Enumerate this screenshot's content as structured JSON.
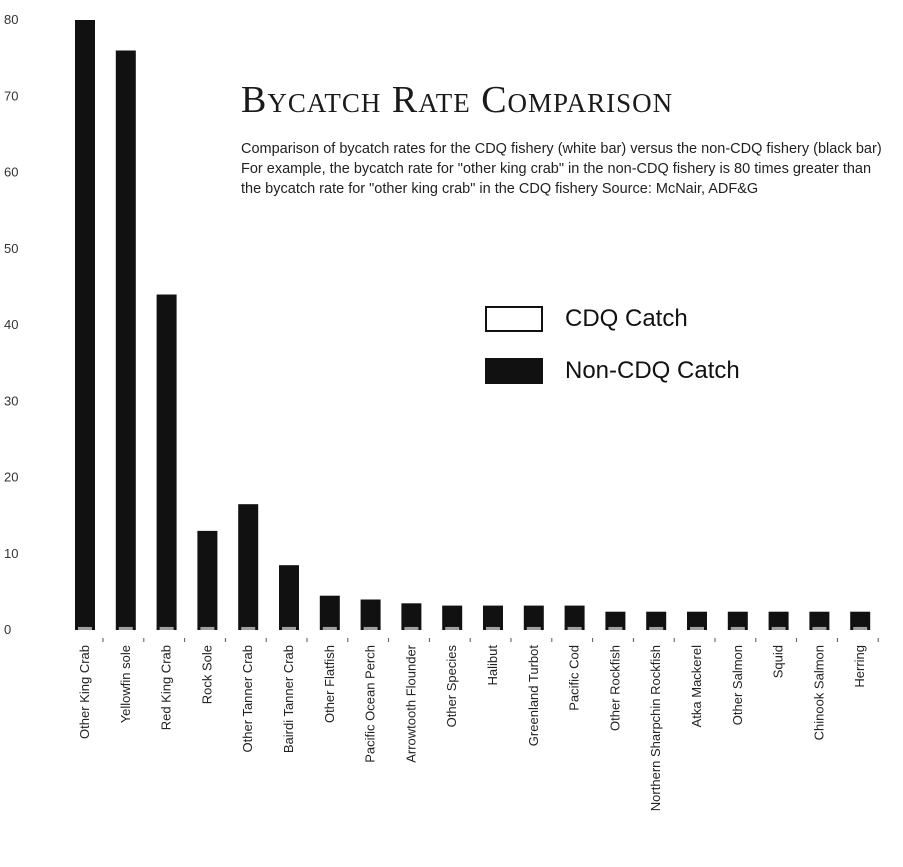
{
  "title": "Bycatch Rate Comparison",
  "subtitle": "Comparison of bycatch rates for the  CDQ fishery (white bar) versus the non-CDQ fishery (black bar)  For example, the bycatch rate for \"other king crab\" in the non-CDQ fishery is 80 times greater than the bycatch rate for \"other king crab\" in the CDQ fishery  Source: McNair, ADF&G",
  "legend": {
    "cdq": "CDQ Catch",
    "non_cdq": "Non-CDQ Catch"
  },
  "colors": {
    "cdq": "#ffffff",
    "non_cdq": "#111111"
  },
  "chart_data": {
    "type": "bar",
    "title": "Bycatch Rate Comparison",
    "xlabel": "",
    "ylabel": "",
    "ylim": [
      0,
      80
    ],
    "yticks": [
      0,
      10,
      20,
      30,
      40,
      50,
      60,
      70,
      80
    ],
    "grid": false,
    "legend_position": "right",
    "categories": [
      "Other King Crab",
      "Yellowfin sole",
      "Red King Crab",
      "Rock Sole",
      "Other Tanner Crab",
      "Bairdi Tanner Crab",
      "Other Flatfish",
      "Pacific Ocean Perch",
      "Arrowtooth Flounder",
      "Other Species",
      "Halibut",
      "Greenland Turbot",
      "Pacific Cod",
      "Other Rockfish",
      "Northern Sharpchin Rockfish",
      "Atka Mackerel",
      "Other Salmon",
      "Squid",
      "Chinook Salmon",
      "Herring"
    ],
    "series": [
      {
        "name": "CDQ Catch",
        "values": [
          1,
          1,
          1,
          1,
          1,
          1,
          1,
          1,
          1,
          1,
          1,
          1,
          1,
          1,
          1,
          1,
          1,
          1,
          1,
          1
        ]
      },
      {
        "name": "Non-CDQ Catch",
        "values": [
          80,
          76,
          44,
          13,
          16.5,
          8.5,
          4.5,
          4,
          3.5,
          3.2,
          3.2,
          3.2,
          3.2,
          2.4,
          2.4,
          2.4,
          2.4,
          2.4,
          2.4,
          2.4
        ]
      }
    ]
  }
}
